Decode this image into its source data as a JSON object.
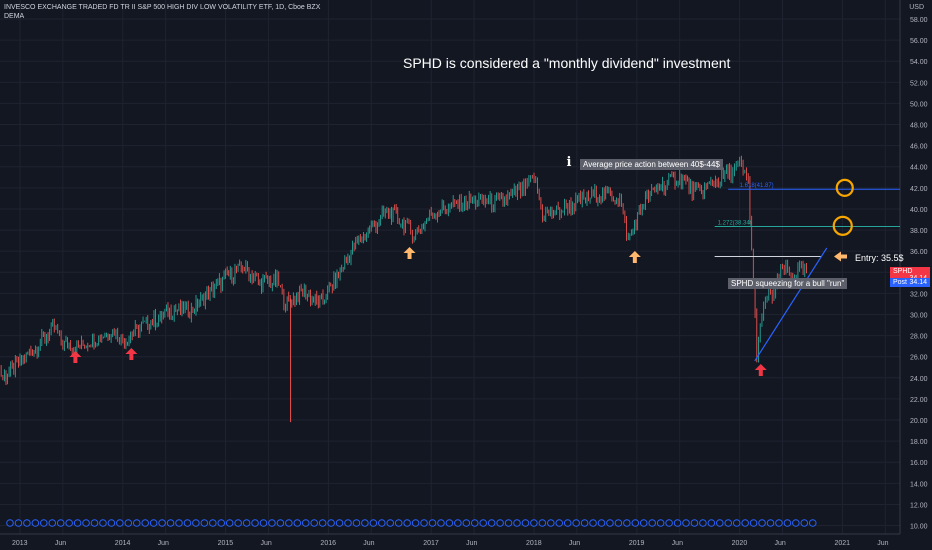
{
  "header": {
    "symbol_line": "INVESCO EXCHANGE TRADED FD TR II S&P 500 HIGH DIV LOW VOLATILITY ETF, 1D, Cboe BZX",
    "indicator": "DEMA",
    "currency": "USD"
  },
  "annotations": {
    "title": "SPHD is considered a \"monthly dividend\" investment",
    "average_note": "Average price action between 40$-44$",
    "entry": "Entry: 35.5$",
    "squeeze_note": "SPHD squeezing for a bull \"run\"",
    "fib_label": "1.272(38.34)",
    "fib_label_upper": "1.618(41.87)"
  },
  "price_tags": [
    {
      "label": "SPHD",
      "value": "34.14",
      "color": "#f23645"
    },
    {
      "label": "Post",
      "value": "34.14",
      "color": "#2962ff"
    }
  ],
  "colors": {
    "background": "#131722",
    "up": "#26a69a",
    "down": "#ef5350",
    "fib_line": "#26a69a",
    "fib_upper_line": "#2962ff",
    "circle": "#f7a600",
    "arrow_up_orange": "#ffb86c",
    "arrow_up_red": "#f23645",
    "trend_line": "#2962ff"
  },
  "chart_data": {
    "type": "line",
    "title": "",
    "xlabel": "",
    "ylabel": "",
    "y_axis_ticks": [
      10,
      12,
      14,
      16,
      18,
      20,
      22,
      24,
      26,
      28,
      30,
      32,
      34,
      36,
      38,
      40,
      42,
      44,
      46,
      48,
      50,
      52,
      54,
      56,
      58
    ],
    "ylim": [
      9.2,
      59.8
    ],
    "x_axis_ticks": [
      "2013",
      "Jun",
      "2014",
      "Jun",
      "2015",
      "Jun",
      "2016",
      "Jun",
      "2017",
      "Jun",
      "2018",
      "Jun",
      "2019",
      "Jun",
      "2020",
      "Jun",
      "2021",
      "Jun"
    ],
    "series": [
      {
        "values": [
          {
            "x": "2012-10",
            "y": 25.8
          },
          {
            "x": "2012-11",
            "y": 24.0
          },
          {
            "x": "2013-01",
            "y": 25.5
          },
          {
            "x": "2013-03",
            "y": 27.0
          },
          {
            "x": "2013-05",
            "y": 28.8
          },
          {
            "x": "2013-06",
            "y": 27.2
          },
          {
            "x": "2013-08",
            "y": 27.0
          },
          {
            "x": "2013-10",
            "y": 27.8
          },
          {
            "x": "2013-12",
            "y": 28.5
          },
          {
            "x": "2014-01",
            "y": 27.4
          },
          {
            "x": "2014-03",
            "y": 28.8
          },
          {
            "x": "2014-05",
            "y": 29.6
          },
          {
            "x": "2014-07",
            "y": 30.5
          },
          {
            "x": "2014-09",
            "y": 30.4
          },
          {
            "x": "2014-11",
            "y": 32.0
          },
          {
            "x": "2015-01",
            "y": 33.5
          },
          {
            "x": "2015-03",
            "y": 34.5
          },
          {
            "x": "2015-05",
            "y": 33.0
          },
          {
            "x": "2015-07",
            "y": 33.2
          },
          {
            "x": "2015-08",
            "y": 31.0
          },
          {
            "x": "2015-10",
            "y": 32.2
          },
          {
            "x": "2015-12",
            "y": 31.0
          },
          {
            "x": "2016-02",
            "y": 33.5
          },
          {
            "x": "2016-04",
            "y": 36.5
          },
          {
            "x": "2016-06",
            "y": 38.2
          },
          {
            "x": "2016-08",
            "y": 39.8
          },
          {
            "x": "2016-10",
            "y": 38.5
          },
          {
            "x": "2016-11",
            "y": 37.5
          },
          {
            "x": "2017-01",
            "y": 39.5
          },
          {
            "x": "2017-03",
            "y": 40.2
          },
          {
            "x": "2017-06",
            "y": 40.8
          },
          {
            "x": "2017-09",
            "y": 40.6
          },
          {
            "x": "2017-12",
            "y": 42.0
          },
          {
            "x": "2018-01",
            "y": 43.0
          },
          {
            "x": "2018-02",
            "y": 39.5
          },
          {
            "x": "2018-04",
            "y": 39.8
          },
          {
            "x": "2018-07",
            "y": 41.0
          },
          {
            "x": "2018-09",
            "y": 41.5
          },
          {
            "x": "2018-11",
            "y": 41.0
          },
          {
            "x": "2018-12",
            "y": 37.0
          },
          {
            "x": "2019-02",
            "y": 41.0
          },
          {
            "x": "2019-04",
            "y": 42.3
          },
          {
            "x": "2019-06",
            "y": 43.0
          },
          {
            "x": "2019-08",
            "y": 41.5
          },
          {
            "x": "2019-10",
            "y": 42.5
          },
          {
            "x": "2019-12",
            "y": 43.5
          },
          {
            "x": "2020-01",
            "y": 44.2
          },
          {
            "x": "2020-02",
            "y": 42.5
          },
          {
            "x": "2020-03",
            "y": 26.5
          },
          {
            "x": "2020-04",
            "y": 31.5
          },
          {
            "x": "2020-05",
            "y": 32.0
          },
          {
            "x": "2020-06",
            "y": 34.5
          },
          {
            "x": "2020-07",
            "y": 33.5
          },
          {
            "x": "2020-08",
            "y": 34.2
          },
          {
            "x": "2020-09",
            "y": 34.14
          }
        ]
      }
    ],
    "horizontal_levels": [
      {
        "label": "1.618(41.87)",
        "y": 41.87
      },
      {
        "label": "1.272(38.34)",
        "y": 38.34
      },
      {
        "label": "Entry: 35.5$",
        "y": 35.5
      }
    ],
    "grid": true,
    "legend": "none"
  }
}
